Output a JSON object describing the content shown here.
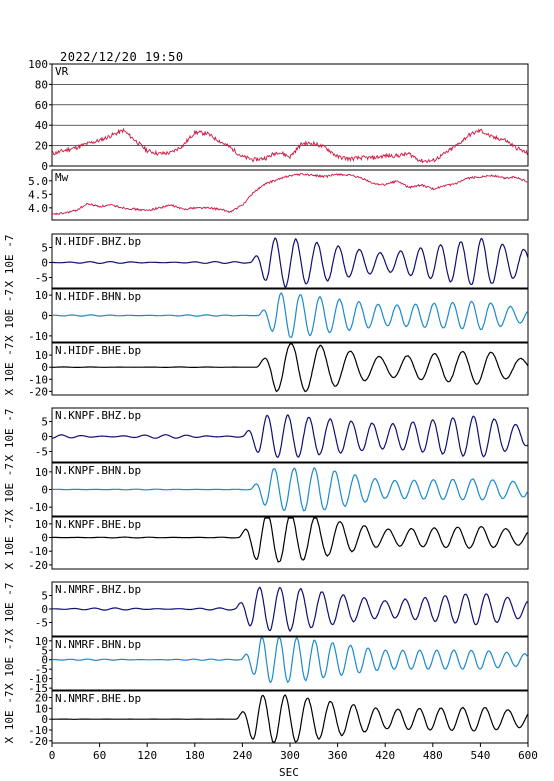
{
  "header": {
    "timestamp": "2022/12/20 19:50"
  },
  "colors": {
    "frame": "#000000",
    "vr_mw": "#cc1a44",
    "dark_trace": "#101070",
    "light_trace": "#1a8ad0",
    "black_trace": "#000000"
  },
  "x_axis": {
    "label": "SEC",
    "range": [
      0,
      600
    ],
    "ticks": [
      "0",
      "60",
      "120",
      "180",
      "240",
      "300",
      "360",
      "420",
      "480",
      "540",
      "600"
    ]
  },
  "chart_data": [
    {
      "type": "line",
      "label": "VR",
      "ylim": [
        0,
        100
      ],
      "yticks": [
        "0",
        "20",
        "40",
        "60",
        "80",
        "100"
      ],
      "grid": true,
      "series": {
        "x": [
          0,
          15,
          30,
          45,
          60,
          75,
          90,
          105,
          120,
          135,
          150,
          165,
          180,
          195,
          210,
          225,
          240,
          255,
          270,
          285,
          300,
          315,
          330,
          345,
          360,
          375,
          390,
          405,
          420,
          435,
          450,
          465,
          480,
          495,
          510,
          525,
          540,
          555,
          570,
          585,
          600
        ],
        "y": [
          12,
          15,
          18,
          22,
          25,
          30,
          35,
          25,
          15,
          12,
          13,
          20,
          33,
          32,
          25,
          18,
          9,
          6,
          8,
          14,
          9,
          22,
          22,
          18,
          9,
          7,
          8,
          8,
          10,
          10,
          12,
          5,
          5,
          12,
          20,
          30,
          35,
          28,
          26,
          18,
          12
        ]
      }
    },
    {
      "type": "line",
      "label": "Mw",
      "ylim": [
        3.55,
        5.4
      ],
      "yticks": [
        "4.0",
        "4.5",
        "5.0"
      ],
      "series": {
        "x": [
          0,
          15,
          30,
          45,
          60,
          75,
          90,
          105,
          120,
          135,
          150,
          165,
          180,
          195,
          210,
          225,
          240,
          255,
          270,
          285,
          300,
          315,
          330,
          345,
          360,
          375,
          390,
          405,
          420,
          435,
          450,
          465,
          480,
          495,
          510,
          525,
          540,
          555,
          570,
          585,
          600
        ],
        "y": [
          3.75,
          3.8,
          3.9,
          4.15,
          4.05,
          4.1,
          4.0,
          3.95,
          3.9,
          4.0,
          4.1,
          3.95,
          4.0,
          4.0,
          3.95,
          3.85,
          4.1,
          4.6,
          4.9,
          5.05,
          5.2,
          5.25,
          5.2,
          5.15,
          5.25,
          5.2,
          5.1,
          4.9,
          4.85,
          5.0,
          4.75,
          4.85,
          4.7,
          4.8,
          4.9,
          5.1,
          5.15,
          5.2,
          5.1,
          5.15,
          4.95
        ]
      }
    },
    {
      "type": "line",
      "label": "N.HIDF.BHZ.bp",
      "unit": "X 10E -7",
      "ylim": [
        -8.5,
        9.5
      ],
      "yticks": [
        "-5",
        "0",
        "5"
      ],
      "style": "dark",
      "wave": {
        "t0": 250,
        "period": 26,
        "amp": 8,
        "pre": 0.3,
        "post": [
          [
            300,
            8
          ],
          [
            420,
            3
          ],
          [
            540,
            8
          ],
          [
            600,
            4
          ]
        ]
      }
    },
    {
      "type": "line",
      "label": "N.HIDF.BHN.bp",
      "unit": "X 10E -7",
      "ylim": [
        -13,
        13
      ],
      "yticks": [
        "-10",
        "0",
        "10"
      ],
      "style": "light",
      "wave": {
        "t0": 260,
        "period": 24,
        "amp": 11,
        "pre": 0.3,
        "post": [
          [
            300,
            11
          ],
          [
            420,
            5
          ],
          [
            540,
            7
          ],
          [
            600,
            3
          ]
        ]
      }
    },
    {
      "type": "line",
      "label": "N.HIDF.BHE.bp",
      "unit": "X 10E -7",
      "ylim": [
        -23,
        20
      ],
      "yticks": [
        "-20",
        "-10",
        "0",
        "10"
      ],
      "style": "black",
      "wave": {
        "t0": 258,
        "period": 36,
        "amp": 18,
        "pre": 0.2,
        "post": [
          [
            320,
            20
          ],
          [
            420,
            8
          ],
          [
            540,
            14
          ],
          [
            600,
            6
          ]
        ]
      }
    },
    {
      "type": "line",
      "label": "N.KNPF.BHZ.bp",
      "unit": "X 10E -7",
      "ylim": [
        -8.5,
        9.5
      ],
      "yticks": [
        "-5",
        "0",
        "5"
      ],
      "style": "dark",
      "wave": {
        "t0": 240,
        "period": 26,
        "amp": 7,
        "pre": 0.6,
        "post": [
          [
            300,
            7
          ],
          [
            420,
            4
          ],
          [
            540,
            7
          ],
          [
            600,
            3
          ]
        ]
      }
    },
    {
      "type": "line",
      "label": "N.KNPF.BHN.bp",
      "unit": "X 10E -7",
      "ylim": [
        -15,
        15
      ],
      "yticks": [
        "-10",
        "0",
        "10"
      ],
      "style": "light",
      "wave": {
        "t0": 250,
        "period": 25,
        "amp": 12,
        "pre": 0.2,
        "post": [
          [
            340,
            12
          ],
          [
            420,
            5
          ],
          [
            540,
            6
          ],
          [
            600,
            4
          ]
        ]
      }
    },
    {
      "type": "line",
      "label": "N.KNPF.BHE.bp",
      "unit": "X 10E -7",
      "ylim": [
        -23,
        15
      ],
      "yticks": [
        "-20",
        "-10",
        "0",
        "10"
      ],
      "style": "black",
      "wave": {
        "t0": 235,
        "period": 30,
        "amp": 18,
        "pre": 0.3,
        "post": [
          [
            300,
            18
          ],
          [
            420,
            6
          ],
          [
            540,
            8
          ],
          [
            600,
            5
          ]
        ]
      }
    },
    {
      "type": "line",
      "label": "N.NMRF.BHZ.bp",
      "unit": "X 10E -7",
      "ylim": [
        -10,
        10
      ],
      "yticks": [
        "-5",
        "0",
        "5"
      ],
      "style": "dark",
      "wave": {
        "t0": 230,
        "period": 26,
        "amp": 8,
        "pre": 0.4,
        "post": [
          [
            300,
            8
          ],
          [
            420,
            3
          ],
          [
            540,
            6
          ],
          [
            600,
            3
          ]
        ]
      }
    },
    {
      "type": "line",
      "label": "N.NMRF.BHN.bp",
      "unit": "X 10E -7",
      "ylim": [
        -16,
        12
      ],
      "yticks": [
        "-15",
        "-10",
        "-5",
        "0",
        "5",
        "10"
      ],
      "style": "light",
      "wave": {
        "t0": 238,
        "period": 22,
        "amp": 12,
        "pre": 0.3,
        "post": [
          [
            300,
            12
          ],
          [
            420,
            5
          ],
          [
            540,
            5
          ],
          [
            600,
            3
          ]
        ]
      }
    },
    {
      "type": "line",
      "label": "N.NMRF.BHE.bp",
      "unit": "X 10E -7",
      "ylim": [
        -22,
        26
      ],
      "yticks": [
        "-20",
        "-10",
        "0",
        "10",
        "20"
      ],
      "style": "black",
      "wave": {
        "t0": 232,
        "period": 28,
        "amp": 22,
        "pre": 0.1,
        "post": [
          [
            300,
            22
          ],
          [
            420,
            9
          ],
          [
            540,
            11
          ],
          [
            600,
            7
          ]
        ]
      }
    }
  ]
}
